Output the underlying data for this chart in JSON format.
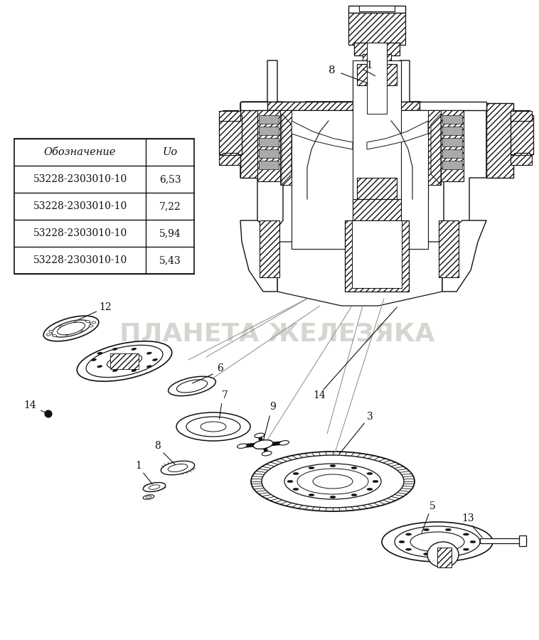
{
  "bg_color": "#ffffff",
  "table_header": [
    "Обозначение",
    "Uo"
  ],
  "table_rows": [
    [
      "53228-2303010-10",
      "6,53"
    ],
    [
      "53228-2303010-10",
      "7,22"
    ],
    [
      "53228-2303010-10",
      "5,94"
    ],
    [
      "53228-2303010-10",
      "5,43"
    ]
  ],
  "watermark": "ПЛАНЕТА ЖЕЛЕЗЯКА",
  "watermark_color": "#c8c4bc",
  "fig_width": 7.58,
  "fig_height": 9.0,
  "dpi": 100,
  "dark": "#111111",
  "hatch_color": "#333333",
  "gray": "#aaaaaa",
  "midgray": "#888888"
}
